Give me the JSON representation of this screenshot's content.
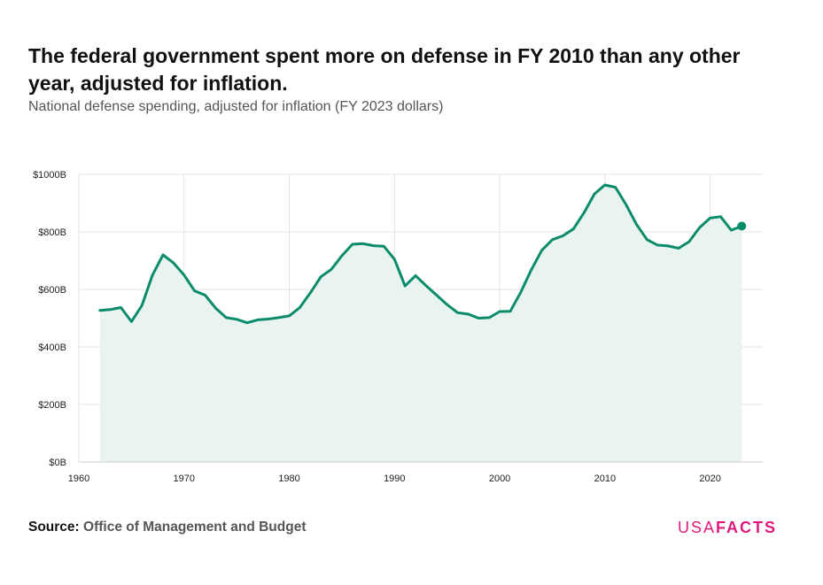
{
  "title": "The federal government spent more on defense in FY 2010 than any other year, adjusted for inflation.",
  "subtitle": "National defense spending, adjusted for inflation (FY 2023 dollars)",
  "source_label": "Source:",
  "source_name": "Office of Management and Budget",
  "logo": {
    "part1": "USA",
    "part2": "FACTS"
  },
  "colors": {
    "line": "#0a8c6a",
    "fill": "#e9f4f1",
    "grid": "#e3e3e3",
    "logo": "#e0197d"
  },
  "chart_data": {
    "type": "area",
    "title": "The federal government spent more on defense in FY 2010 than any other year, adjusted for inflation.",
    "xlabel": "",
    "ylabel": "",
    "xlim": [
      1960,
      2025
    ],
    "ylim": [
      0,
      1000
    ],
    "x_ticks": [
      1960,
      1970,
      1980,
      1990,
      2000,
      2010,
      2020
    ],
    "x_tick_labels": [
      "1960",
      "1970",
      "1980",
      "1990",
      "2000",
      "2010",
      "2020"
    ],
    "y_ticks": [
      0,
      200,
      400,
      600,
      800,
      1000
    ],
    "y_tick_labels": [
      "$0B",
      "$200B",
      "$400B",
      "$600B",
      "$800B",
      "$1000B"
    ],
    "grid": true,
    "series": [
      {
        "x": [
          1962,
          1963,
          1964,
          1965,
          1966,
          1967,
          1968,
          1969,
          1970,
          1971,
          1972,
          1973,
          1974,
          1975,
          1976,
          1977,
          1978,
          1979,
          1980,
          1981,
          1982,
          1983,
          1984,
          1985,
          1986,
          1987,
          1988,
          1989,
          1990,
          1991,
          1992,
          1993,
          1994,
          1995,
          1996,
          1997,
          1998,
          1999,
          2000,
          2001,
          2002,
          2003,
          2004,
          2005,
          2006,
          2007,
          2008,
          2009,
          2010,
          2011,
          2012,
          2013,
          2014,
          2015,
          2016,
          2017,
          2018,
          2019,
          2020,
          2021,
          2022,
          2023
        ],
        "values": [
          527,
          530,
          537,
          488,
          545,
          650,
          720,
          692,
          650,
          595,
          580,
          535,
          502,
          496,
          484,
          494,
          497,
          502,
          508,
          537,
          588,
          644,
          670,
          717,
          757,
          759,
          752,
          750,
          705,
          612,
          648,
          613,
          580,
          547,
          519,
          514,
          500,
          502,
          523,
          524,
          590,
          668,
          736,
          773,
          786,
          810,
          866,
          932,
          963,
          955,
          895,
          826,
          773,
          754,
          751,
          743,
          766,
          815,
          848,
          853,
          806,
          820
        ]
      }
    ]
  }
}
